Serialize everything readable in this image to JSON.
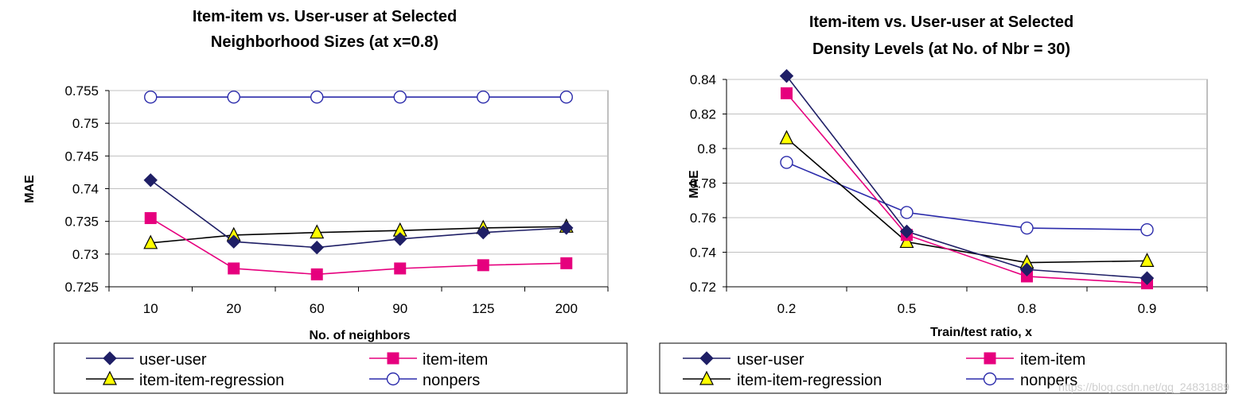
{
  "colors": {
    "user-user": "#1f1f66",
    "item-item": "#e6007e",
    "item-item-regression": "#000000",
    "nonpers": "#2b2bab",
    "marker_regression_fill": "#ffff00",
    "grid": "#c0c0c0"
  },
  "watermark": "https://blog.csdn.net/qq_24831889",
  "chart_data": [
    {
      "type": "line",
      "title_line1": "Item-item vs. User-user at Selected",
      "title_line2": "Neighborhood Sizes (at x=0.8)",
      "xlabel": "No. of neighbors",
      "ylabel": "MAE",
      "categories": [
        "10",
        "20",
        "60",
        "90",
        "125",
        "200"
      ],
      "ylim": [
        0.725,
        0.755
      ],
      "yticks": [
        "0.725",
        "0.73",
        "0.735",
        "0.74",
        "0.745",
        "0.75",
        "0.755"
      ],
      "ytick_values": [
        0.725,
        0.73,
        0.735,
        0.74,
        0.745,
        0.75,
        0.755
      ],
      "grid": true,
      "series": [
        {
          "name": "user-user",
          "values": [
            0.7413,
            0.7319,
            0.731,
            0.7323,
            0.7333,
            0.734
          ]
        },
        {
          "name": "item-item",
          "values": [
            0.7355,
            0.7278,
            0.7269,
            0.7278,
            0.7283,
            0.7286
          ]
        },
        {
          "name": "item-item-regression",
          "values": [
            0.7317,
            0.7329,
            0.7333,
            0.7336,
            0.734,
            0.7342
          ]
        },
        {
          "name": "nonpers",
          "values": [
            0.754,
            0.754,
            0.754,
            0.754,
            0.754,
            0.754
          ]
        }
      ],
      "legend": [
        "user-user",
        "item-item",
        "item-item-regression",
        "nonpers"
      ]
    },
    {
      "type": "line",
      "title_line1": "Item-item vs. User-user at Selected",
      "title_line2": "Density Levels (at No. of Nbr = 30)",
      "xlabel": "Train/test ratio, x",
      "ylabel": "MAE",
      "categories": [
        "0.2",
        "0.5",
        "0.8",
        "0.9"
      ],
      "ylim": [
        0.72,
        0.84
      ],
      "yticks": [
        "0.72",
        "0.74",
        "0.76",
        "0.78",
        "0.8",
        "0.82",
        "0.84"
      ],
      "ytick_values": [
        0.72,
        0.74,
        0.76,
        0.78,
        0.8,
        0.82,
        0.84
      ],
      "grid": true,
      "series": [
        {
          "name": "user-user",
          "values": [
            0.842,
            0.752,
            0.73,
            0.725
          ]
        },
        {
          "name": "item-item",
          "values": [
            0.832,
            0.75,
            0.726,
            0.722
          ]
        },
        {
          "name": "item-item-regression",
          "values": [
            0.806,
            0.746,
            0.734,
            0.735
          ]
        },
        {
          "name": "nonpers",
          "values": [
            0.792,
            0.763,
            0.754,
            0.753
          ]
        }
      ],
      "legend": [
        "user-user",
        "item-item",
        "item-item-regression",
        "nonpers"
      ]
    }
  ]
}
